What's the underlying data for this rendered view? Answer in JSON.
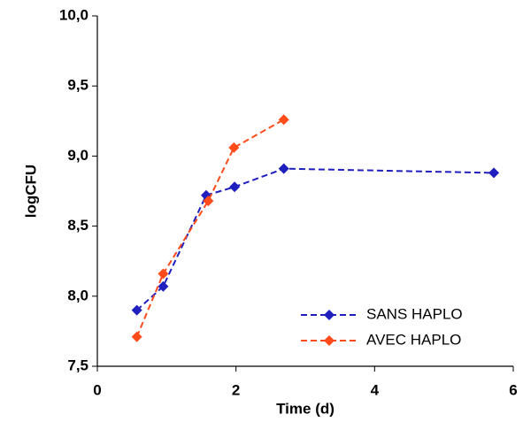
{
  "chart_data": {
    "type": "line",
    "x_label": "Time (d)",
    "y_label": "logCFU",
    "xlim": [
      0,
      6
    ],
    "xticks": [
      0,
      2,
      4,
      6
    ],
    "ylim": [
      7.5,
      10
    ],
    "yticks": [
      {
        "value": 7.5,
        "label": "7,5"
      },
      {
        "value": 8,
        "label": "8,0"
      },
      {
        "value": 8.5,
        "label": "8,5"
      },
      {
        "value": 9,
        "label": "9,0"
      },
      {
        "value": 9.5,
        "label": "9,5"
      },
      {
        "value": 10,
        "label": "10,0"
      }
    ],
    "legend": "lower right",
    "series": [
      {
        "name": "SANS HAPLO",
        "color": "#1f1fbf",
        "x": [
          0.57,
          0.95,
          1.57,
          1.98,
          2.69,
          5.72
        ],
        "values": [
          7.9,
          8.07,
          8.72,
          8.78,
          8.91,
          8.88
        ]
      },
      {
        "name": "AVEC HAPLO",
        "color": "#ff4a1a",
        "x": [
          0.57,
          0.95,
          1.6,
          1.97,
          2.69
        ],
        "values": [
          7.71,
          8.16,
          8.68,
          9.06,
          9.26
        ]
      }
    ]
  }
}
